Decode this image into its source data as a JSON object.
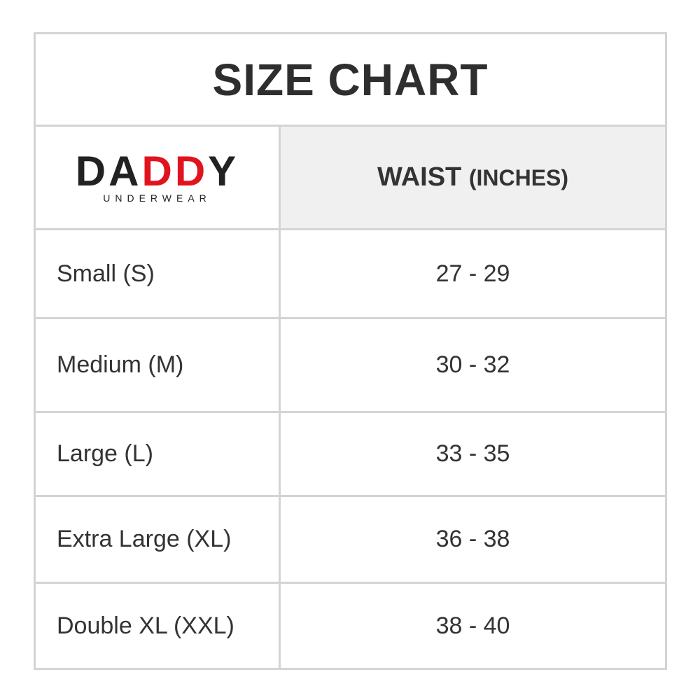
{
  "title": "SIZE CHART",
  "logo": {
    "brand": "DADDY",
    "tagline": "UNDERWEAR"
  },
  "table": {
    "header": {
      "label": "WAIST",
      "unit": "(INCHES)"
    },
    "rows": [
      [
        "Small (S)",
        "27 - 29"
      ],
      [
        "Medium (M)",
        "30 - 32"
      ],
      [
        "Large (L)",
        "33 - 35"
      ],
      [
        "Extra Large (XL)",
        "36 - 38"
      ],
      [
        "Double XL (XXL)",
        "38 - 40"
      ]
    ]
  }
}
